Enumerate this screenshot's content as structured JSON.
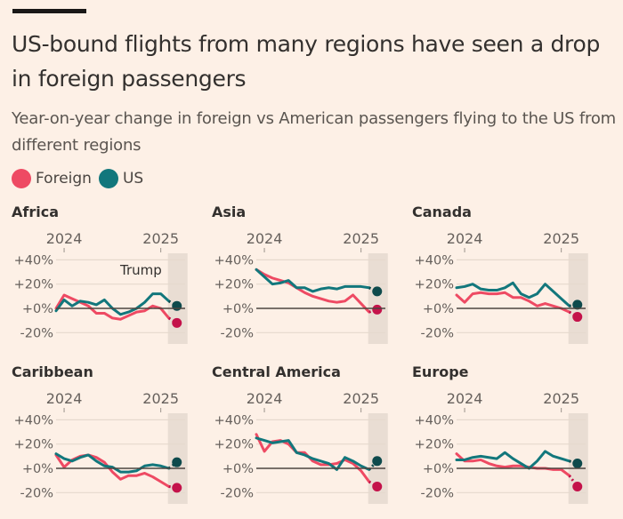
{
  "header": {
    "title": "US-bound flights from many regions have seen a drop in foreign passengers",
    "subtitle": "Year-on-year change in foreign vs American passengers flying to the US from different regions"
  },
  "legend": [
    {
      "label": "Foreign",
      "color": "#EE4A63"
    },
    {
      "label": "US",
      "color": "#12777C"
    }
  ],
  "colors": {
    "foreign_line": "#EE4A63",
    "foreign_dot": "#C4124A",
    "us_line": "#12777C",
    "us_dot": "#0E4A4C",
    "zero_line": "#4d4540",
    "grid": "#E6D9CD",
    "shade": "#E9DDD3"
  },
  "chart_data": [
    {
      "type": "line",
      "title": "Africa",
      "x": [
        "Dec 2023",
        "Jan 2024",
        "Feb 2024",
        "Mar 2024",
        "Apr 2024",
        "May 2024",
        "Jun 2024",
        "Jul 2024",
        "Aug 2024",
        "Sep 2024",
        "Oct 2024",
        "Nov 2024",
        "Dec 2024",
        "Jan 2025",
        "Feb 2025",
        "Mar 2025"
      ],
      "x_ticks": [
        {
          "label": "2024",
          "at": "Jan 2024"
        },
        {
          "label": "2025",
          "at": "Jan 2025"
        }
      ],
      "y_ticks": [
        "+40%",
        "+20%",
        "+0%",
        "-20%"
      ],
      "ylim": [
        -20,
        40
      ],
      "grid": true,
      "unit": "%",
      "shaded_period": [
        "Feb 2025",
        "Mar 2025"
      ],
      "annotation": "Trump",
      "series": [
        {
          "name": "Foreign",
          "values": [
            0,
            11,
            8,
            5,
            2,
            -4,
            -4,
            -8,
            -9,
            -6,
            -3,
            -2,
            2,
            0,
            -8,
            -12
          ]
        },
        {
          "name": "US",
          "values": [
            -2,
            7,
            2,
            6,
            5,
            3,
            7,
            0,
            -5,
            -3,
            0,
            5,
            12,
            12,
            6,
            2
          ]
        }
      ]
    },
    {
      "type": "line",
      "title": "Asia",
      "x": [
        "Dec 2023",
        "Jan 2024",
        "Feb 2024",
        "Mar 2024",
        "Apr 2024",
        "May 2024",
        "Jun 2024",
        "Jul 2024",
        "Aug 2024",
        "Sep 2024",
        "Oct 2024",
        "Nov 2024",
        "Dec 2024",
        "Jan 2025",
        "Feb 2025",
        "Mar 2025"
      ],
      "x_ticks": [
        {
          "label": "2024",
          "at": "Jan 2024"
        },
        {
          "label": "2025",
          "at": "Jan 2025"
        }
      ],
      "y_ticks": [
        "+40%",
        "+20%",
        "+0%",
        "-20%"
      ],
      "ylim": [
        -20,
        40
      ],
      "grid": true,
      "unit": "%",
      "shaded_period": [
        "Feb 2025",
        "Mar 2025"
      ],
      "series": [
        {
          "name": "Foreign",
          "values": [
            32,
            28,
            25,
            23,
            21,
            17,
            13,
            10,
            8,
            6,
            5,
            6,
            11,
            4,
            -3,
            -1
          ]
        },
        {
          "name": "US",
          "values": [
            32,
            26,
            20,
            21,
            23,
            17,
            17,
            14,
            16,
            17,
            16,
            18,
            18,
            18,
            17,
            14
          ]
        }
      ]
    },
    {
      "type": "line",
      "title": "Canada",
      "x": [
        "Dec 2023",
        "Jan 2024",
        "Feb 2024",
        "Mar 2024",
        "Apr 2024",
        "May 2024",
        "Jun 2024",
        "Jul 2024",
        "Aug 2024",
        "Sep 2024",
        "Oct 2024",
        "Nov 2024",
        "Dec 2024",
        "Jan 2025",
        "Feb 2025",
        "Mar 2025"
      ],
      "x_ticks": [
        {
          "label": "2024",
          "at": "Jan 2024"
        },
        {
          "label": "2025",
          "at": "Jan 2025"
        }
      ],
      "y_ticks": [
        "+40%",
        "+20%",
        "+0%",
        "-20%"
      ],
      "ylim": [
        -20,
        40
      ],
      "grid": true,
      "unit": "%",
      "shaded_period": [
        "Feb 2025",
        "Mar 2025"
      ],
      "series": [
        {
          "name": "Foreign",
          "values": [
            11,
            5,
            12,
            13,
            12,
            12,
            13,
            9,
            9,
            6,
            2,
            4,
            2,
            0,
            -3,
            -7
          ]
        },
        {
          "name": "US",
          "values": [
            17,
            18,
            20,
            16,
            15,
            15,
            17,
            21,
            12,
            9,
            12,
            20,
            14,
            8,
            2,
            3
          ]
        }
      ]
    },
    {
      "type": "line",
      "title": "Caribbean",
      "x": [
        "Dec 2023",
        "Jan 2024",
        "Feb 2024",
        "Mar 2024",
        "Apr 2024",
        "May 2024",
        "Jun 2024",
        "Jul 2024",
        "Aug 2024",
        "Sep 2024",
        "Oct 2024",
        "Nov 2024",
        "Dec 2024",
        "Jan 2025",
        "Feb 2025",
        "Mar 2025"
      ],
      "x_ticks": [
        {
          "label": "2024",
          "at": "Jan 2024"
        },
        {
          "label": "2025",
          "at": "Jan 2025"
        }
      ],
      "y_ticks": [
        "+40%",
        "+20%",
        "+0%",
        "-20%"
      ],
      "ylim": [
        -20,
        40
      ],
      "grid": true,
      "unit": "%",
      "shaded_period": [
        "Feb 2025",
        "Mar 2025"
      ],
      "series": [
        {
          "name": "Foreign",
          "values": [
            11,
            1,
            7,
            10,
            11,
            9,
            5,
            -3,
            -9,
            -6,
            -6,
            -4,
            -7,
            -11,
            -15,
            -16
          ]
        },
        {
          "name": "US",
          "values": [
            12,
            8,
            6,
            9,
            11,
            6,
            2,
            1,
            -3,
            -3,
            -2,
            2,
            3,
            2,
            0,
            5
          ]
        }
      ]
    },
    {
      "type": "line",
      "title": "Central America",
      "x": [
        "Dec 2023",
        "Jan 2024",
        "Feb 2024",
        "Mar 2024",
        "Apr 2024",
        "May 2024",
        "Jun 2024",
        "Jul 2024",
        "Aug 2024",
        "Sep 2024",
        "Oct 2024",
        "Nov 2024",
        "Dec 2024",
        "Jan 2025",
        "Feb 2025",
        "Mar 2025"
      ],
      "x_ticks": [
        {
          "label": "2024",
          "at": "Jan 2024"
        },
        {
          "label": "2025",
          "at": "Jan 2025"
        }
      ],
      "y_ticks": [
        "+40%",
        "+20%",
        "+0%",
        "-20%"
      ],
      "ylim": [
        -20,
        40
      ],
      "grid": true,
      "unit": "%",
      "shaded_period": [
        "Feb 2025",
        "Mar 2025"
      ],
      "series": [
        {
          "name": "Foreign",
          "values": [
            28,
            14,
            22,
            23,
            20,
            13,
            13,
            6,
            3,
            3,
            4,
            7,
            4,
            -2,
            -11,
            -15
          ]
        },
        {
          "name": "US",
          "values": [
            25,
            23,
            21,
            22,
            23,
            13,
            11,
            8,
            6,
            4,
            -1,
            9,
            6,
            2,
            -1,
            6
          ]
        }
      ]
    },
    {
      "type": "line",
      "title": "Europe",
      "x": [
        "Dec 2023",
        "Jan 2024",
        "Feb 2024",
        "Mar 2024",
        "Apr 2024",
        "May 2024",
        "Jun 2024",
        "Jul 2024",
        "Aug 2024",
        "Sep 2024",
        "Oct 2024",
        "Nov 2024",
        "Dec 2024",
        "Jan 2025",
        "Feb 2025",
        "Mar 2025"
      ],
      "x_ticks": [
        {
          "label": "2024",
          "at": "Jan 2024"
        },
        {
          "label": "2025",
          "at": "Jan 2025"
        }
      ],
      "y_ticks": [
        "+40%",
        "+20%",
        "+0%",
        "-20%"
      ],
      "ylim": [
        -20,
        40
      ],
      "grid": true,
      "unit": "%",
      "shaded_period": [
        "Feb 2025",
        "Mar 2025"
      ],
      "series": [
        {
          "name": "Foreign",
          "values": [
            12,
            6,
            6,
            7,
            4,
            2,
            1,
            2,
            2,
            1,
            0,
            0,
            -1,
            -1,
            -6,
            -15
          ]
        },
        {
          "name": "US",
          "values": [
            7,
            7,
            9,
            10,
            9,
            8,
            13,
            8,
            4,
            0,
            6,
            14,
            10,
            8,
            6,
            4
          ]
        }
      ]
    }
  ]
}
